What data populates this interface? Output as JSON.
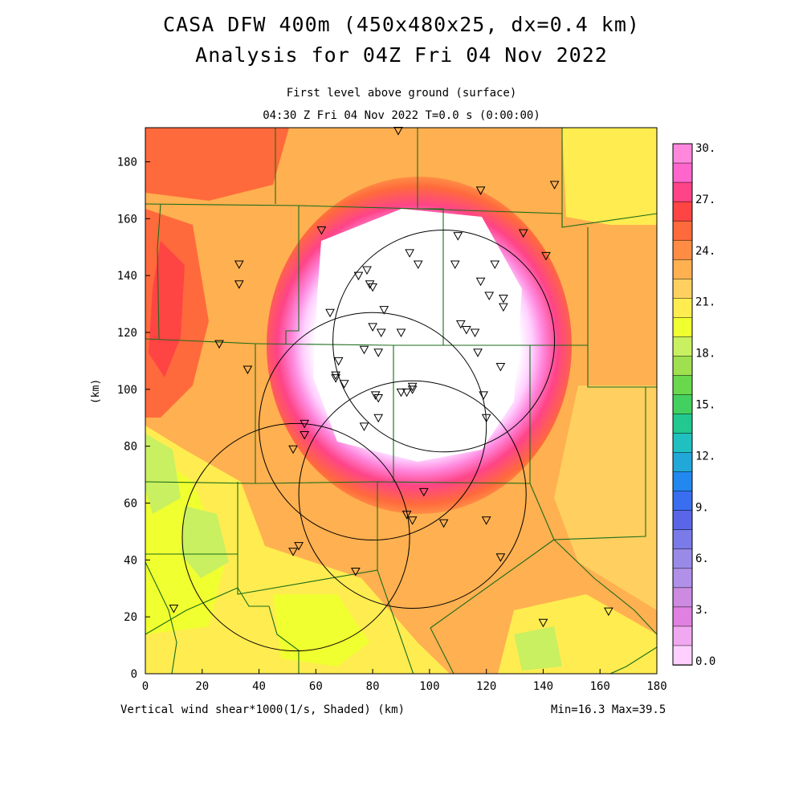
{
  "title": {
    "line1": "CASA DFW 400m (450x480x25, dx=0.4 km)",
    "line2": "Analysis for 04Z Fri 04 Nov 2022"
  },
  "subtitle": {
    "line1": "First level above ground (surface)",
    "line2": "04:30 Z Fri 04 Nov 2022    T=0.0 s (0:00:00)"
  },
  "axes": {
    "ylabel": "(km)",
    "x_ticks": [
      "0",
      "20",
      "40",
      "60",
      "80",
      "100",
      "120",
      "140",
      "160",
      "180"
    ],
    "y_ticks": [
      "0",
      "20",
      "40",
      "60",
      "80",
      "100",
      "120",
      "140",
      "160",
      "180"
    ],
    "xlim": [
      0,
      180
    ],
    "ylim": [
      0,
      192
    ]
  },
  "footer": {
    "field_label": "Vertical wind shear*1000(1/s, Shaded)  (km)",
    "minmax": "Min=16.3 Max=39.5"
  },
  "colorbar": {
    "labels": [
      "30.",
      "27.",
      "24.",
      "21.",
      "18.",
      "15.",
      "12.",
      "9.",
      "6.",
      "3.",
      "0.0"
    ],
    "colors": [
      "#ff88dd",
      "#ff66cc",
      "#ff4488",
      "#ff4444",
      "#ff6a3c",
      "#ff8c44",
      "#ffb050",
      "#ffd060",
      "#ffec50",
      "#f0ff30",
      "#c8f060",
      "#a0e050",
      "#6ad84c",
      "#44d060",
      "#22c890",
      "#20c0c0",
      "#22a8d8",
      "#2288f0",
      "#3a6ef0",
      "#5a66e8",
      "#7a7ae8",
      "#9a8ae8",
      "#b090e8",
      "#cc8ae0",
      "#e080e0",
      "#f0a8f0",
      "#ffd0ff"
    ]
  },
  "radars": [
    {
      "cx": 105,
      "cy": 117,
      "r": 39
    },
    {
      "cx": 80,
      "cy": 87,
      "r": 40
    },
    {
      "cx": 53,
      "cy": 48,
      "r": 40
    },
    {
      "cx": 94,
      "cy": 63,
      "r": 40
    }
  ],
  "stations": [
    [
      89,
      191
    ],
    [
      118,
      170
    ],
    [
      144,
      172
    ],
    [
      62,
      156
    ],
    [
      110,
      154
    ],
    [
      133,
      155
    ],
    [
      141,
      147
    ],
    [
      33,
      144
    ],
    [
      33,
      137
    ],
    [
      78,
      142
    ],
    [
      75,
      140
    ],
    [
      93,
      148
    ],
    [
      96,
      144
    ],
    [
      109,
      144
    ],
    [
      123,
      144
    ],
    [
      118,
      138
    ],
    [
      79,
      137
    ],
    [
      80,
      136
    ],
    [
      121,
      133
    ],
    [
      126,
      132
    ],
    [
      65,
      127
    ],
    [
      84,
      128
    ],
    [
      126,
      129
    ],
    [
      80,
      122
    ],
    [
      111,
      123
    ],
    [
      113,
      121
    ],
    [
      116,
      120
    ],
    [
      83,
      120
    ],
    [
      90,
      120
    ],
    [
      26,
      116
    ],
    [
      77,
      114
    ],
    [
      82,
      113
    ],
    [
      117,
      113
    ],
    [
      68,
      110
    ],
    [
      125,
      108
    ],
    [
      36,
      107
    ],
    [
      67,
      105
    ],
    [
      67,
      104
    ],
    [
      70,
      102
    ],
    [
      94,
      101
    ],
    [
      92,
      99
    ],
    [
      94,
      100
    ],
    [
      81,
      98
    ],
    [
      82,
      97
    ],
    [
      119,
      98
    ],
    [
      82,
      90
    ],
    [
      90,
      99
    ],
    [
      56,
      88
    ],
    [
      77,
      87
    ],
    [
      56,
      84
    ],
    [
      120,
      90
    ],
    [
      52,
      79
    ],
    [
      98,
      64
    ],
    [
      92,
      56
    ],
    [
      94,
      54
    ],
    [
      105,
      53
    ],
    [
      120,
      54
    ],
    [
      54,
      45
    ],
    [
      52,
      43
    ],
    [
      74,
      36
    ],
    [
      125,
      41
    ],
    [
      10,
      23
    ],
    [
      140,
      18
    ],
    [
      163,
      22
    ]
  ]
}
